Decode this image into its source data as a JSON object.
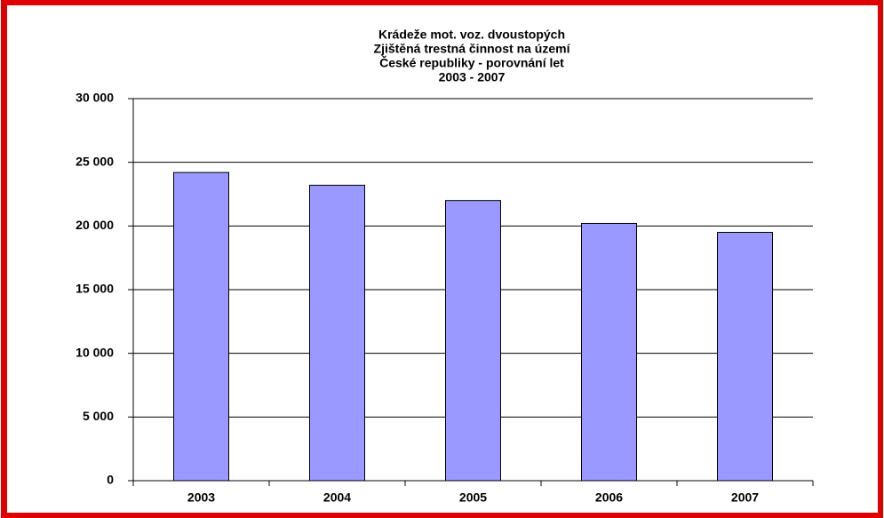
{
  "chart_data": {
    "type": "bar",
    "title": [
      "Krádeže mot.  voz. dvoustopých",
      "Zjištěná trestná činnost na území",
      "České republiky - porovnání let",
      "2003 - 2007"
    ],
    "categories": [
      "2003",
      "2004",
      "2005",
      "2006",
      "2007"
    ],
    "values": [
      24200,
      23200,
      22000,
      20200,
      19500
    ],
    "color": "#9999ff",
    "ylim": [
      0,
      30000
    ],
    "yticks": [
      0,
      {
        "value": 5000,
        "label": "5 000"
      },
      {
        "value": 10000,
        "label": "10 000"
      },
      {
        "value": 15000,
        "label": "15 000"
      },
      {
        "value": 20000,
        "label": "20 000"
      },
      {
        "value": 25000,
        "label": "25 000"
      },
      {
        "value": 30000,
        "label": "30 000"
      }
    ],
    "grid": true
  }
}
